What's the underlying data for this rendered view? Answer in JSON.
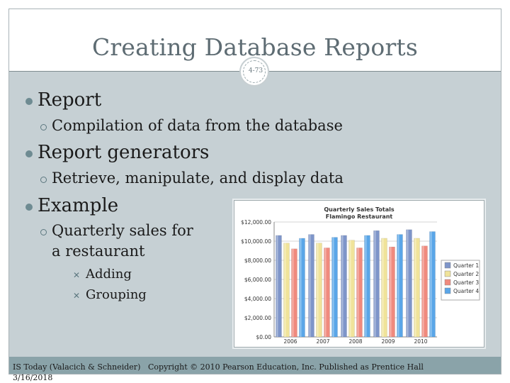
{
  "slide": {
    "title": "Creating Database Reports",
    "page_number": "4-73"
  },
  "bullets": [
    {
      "text": "Report",
      "sub": [
        {
          "text": "Compilation of data from the database"
        }
      ]
    },
    {
      "text": "Report generators",
      "sub": [
        {
          "text": "Retrieve, manipulate, and display data"
        }
      ]
    },
    {
      "text": "Example",
      "sub": [
        {
          "line1": "Quarterly sales for",
          "line2": "a restaurant",
          "items": [
            "Adding",
            "Grouping"
          ]
        }
      ]
    }
  ],
  "footer": {
    "source": "IS Today (Valacich & Schneider)",
    "date": "3/16/2018",
    "copyright": "Copyright © 2010 Pearson Education, Inc. Published as Prentice Hall"
  },
  "colors": {
    "content_bg": "#c6d0d4",
    "footer_bg": "#8aa3a9",
    "bullet": "#6e8b92"
  },
  "chart_data": {
    "type": "bar",
    "title": "Quarterly Sales Totals",
    "subtitle": "Flamingo Restaurant",
    "categories": [
      "2006",
      "2007",
      "2008",
      "2009",
      "2010"
    ],
    "ylim": [
      0,
      12000
    ],
    "yticks": [
      "$0.00",
      "$2,000.00",
      "$4,000.00",
      "$6,000.00",
      "$8,000.00",
      "$10,000.00",
      "$12,000.00"
    ],
    "grid": true,
    "legend_position": "right",
    "series": [
      {
        "name": "Quarter 1",
        "color": "#7e95c9",
        "values": [
          10600,
          10700,
          10600,
          11100,
          11200
        ]
      },
      {
        "name": "Quarter 2",
        "color": "#f0e39a",
        "values": [
          9800,
          9800,
          10100,
          10300,
          10300
        ]
      },
      {
        "name": "Quarter 3",
        "color": "#f08a7e",
        "values": [
          9200,
          9300,
          9300,
          9400,
          9500
        ]
      },
      {
        "name": "Quarter 4",
        "color": "#5aa6e8",
        "values": [
          10300,
          10400,
          10600,
          10700,
          11000
        ]
      }
    ]
  }
}
